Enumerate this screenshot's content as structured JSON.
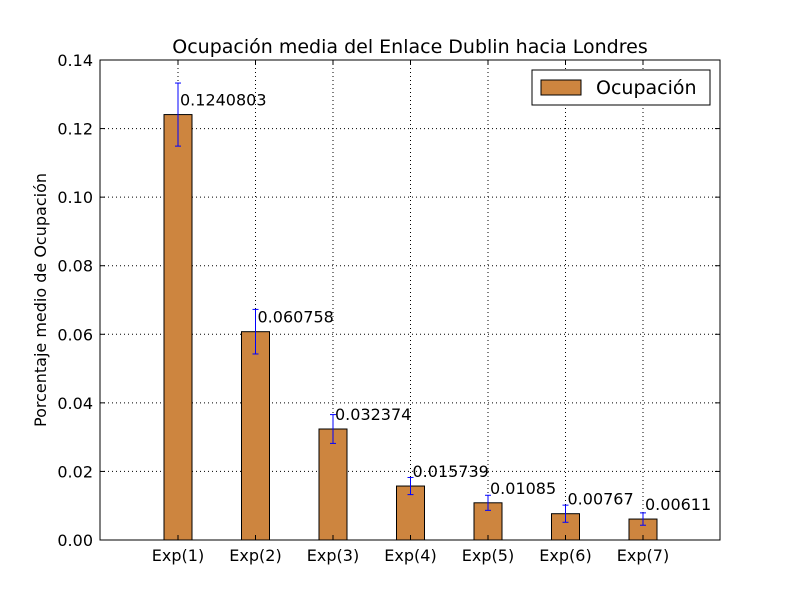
{
  "chart_data": {
    "type": "bar",
    "title": "Ocupación media del Enlace Dublin hacia Londres",
    "xlabel": "",
    "ylabel": "Porcentaje medio de Ocupación",
    "categories": [
      "Exp(1)",
      "Exp(2)",
      "Exp(3)",
      "Exp(4)",
      "Exp(5)",
      "Exp(6)",
      "Exp(7)"
    ],
    "series": [
      {
        "name": "Ocupación",
        "values": [
          0.1240803,
          0.060758,
          0.032374,
          0.015739,
          0.01085,
          0.00767,
          0.00611
        ],
        "value_labels": [
          "0.1240803",
          "0.060758",
          "0.032374",
          "0.015739",
          "0.01085",
          "0.00767",
          "0.00611"
        ],
        "error": [
          0.0092,
          0.0065,
          0.0042,
          0.0025,
          0.0022,
          0.0025,
          0.0018
        ],
        "color": "#cd853f"
      }
    ],
    "ylim": [
      0,
      0.14
    ],
    "yticks": [
      0.0,
      0.02,
      0.04,
      0.06,
      0.08,
      0.1,
      0.12,
      0.14
    ],
    "ytick_labels": [
      "0.00",
      "0.02",
      "0.04",
      "0.06",
      "0.08",
      "0.10",
      "0.12",
      "0.14"
    ],
    "grid": true,
    "legend_position": "top-right",
    "error_bar_color": "#0000ff"
  }
}
